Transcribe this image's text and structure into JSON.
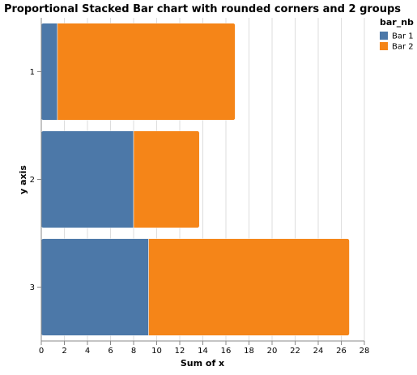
{
  "chart_data": {
    "type": "bar",
    "orientation": "horizontal",
    "stacked": true,
    "title": "Proportional Stacked Bar chart with rounded corners and 2 groups",
    "xlabel": "Sum of x",
    "ylabel": "y axis",
    "xlim": [
      0,
      28
    ],
    "x_ticks": [
      0,
      2,
      4,
      6,
      8,
      10,
      12,
      14,
      16,
      18,
      20,
      22,
      24,
      26,
      28
    ],
    "grid": true,
    "categories": [
      "1",
      "2",
      "3"
    ],
    "series": [
      {
        "name": "Bar 1",
        "color": "#4c78a8",
        "values": [
          1.4,
          8.0,
          9.3
        ]
      },
      {
        "name": "Bar 2",
        "color": "#f58518",
        "values": [
          15.4,
          5.7,
          17.4
        ]
      }
    ],
    "legend": {
      "title": "bar_nb",
      "position": "top-right"
    }
  }
}
